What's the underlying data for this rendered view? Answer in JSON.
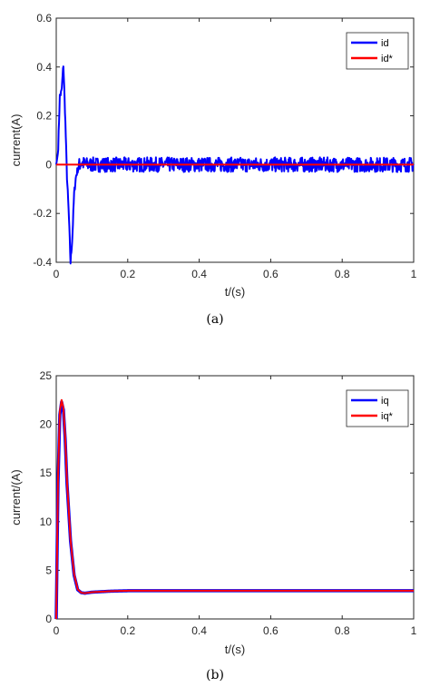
{
  "chart_data": [
    {
      "type": "line",
      "caption": "(a)",
      "xlabel": "t/(s)",
      "ylabel": "current(A)",
      "xlim": [
        0,
        1
      ],
      "ylim": [
        -0.4,
        0.6
      ],
      "xticks": [
        "0",
        "0.2",
        "0.4",
        "0.6",
        "0.8",
        "1"
      ],
      "yticks": [
        "-0.4",
        "-0.2",
        "0",
        "0.2",
        "0.4",
        "0.6"
      ],
      "grid": false,
      "legend_position": "top-right",
      "colors": {
        "id": "#0000ff",
        "id_ref": "#ff0000"
      },
      "series": [
        {
          "name": "id",
          "description": "noisy response around 0 after transient",
          "x": [
            0,
            0.005,
            0.01,
            0.015,
            0.02,
            0.025,
            0.03,
            0.035,
            0.04,
            0.045,
            0.05,
            0.055,
            0.06,
            0.065,
            0.07,
            0.08,
            0.1,
            0.2,
            0.4,
            0.6,
            0.8,
            1.0
          ],
          "y": [
            0,
            0.05,
            0.28,
            0.3,
            0.41,
            0.2,
            -0.05,
            -0.2,
            -0.4,
            -0.3,
            -0.12,
            -0.05,
            -0.02,
            0.0,
            0.01,
            0.0,
            0.0,
            0.0,
            0.0,
            0.0,
            0.0,
            0.0
          ],
          "noise_amplitude": 0.03
        },
        {
          "name": "id*",
          "x": [
            0,
            1
          ],
          "y": [
            0,
            0
          ]
        }
      ]
    },
    {
      "type": "line",
      "caption": "(b)",
      "xlabel": "t/(s)",
      "ylabel": "current/(A)",
      "xlim": [
        0,
        1
      ],
      "ylim": [
        0,
        25
      ],
      "xticks": [
        "0",
        "0.2",
        "0.4",
        "0.6",
        "0.8",
        "1"
      ],
      "yticks": [
        "0",
        "5",
        "10",
        "15",
        "20",
        "25"
      ],
      "grid": false,
      "legend_position": "top-right",
      "colors": {
        "iq": "#0000ff",
        "iq_ref": "#ff0000"
      },
      "series": [
        {
          "name": "iq",
          "x": [
            0,
            0.005,
            0.01,
            0.015,
            0.02,
            0.025,
            0.03,
            0.04,
            0.05,
            0.06,
            0.07,
            0.08,
            0.1,
            0.15,
            0.2,
            0.4,
            0.6,
            0.8,
            1.0
          ],
          "y": [
            0,
            14,
            21,
            22.3,
            21.5,
            18.5,
            14,
            8,
            4.5,
            3.0,
            2.7,
            2.65,
            2.75,
            2.85,
            2.9,
            2.9,
            2.9,
            2.9,
            2.9
          ]
        },
        {
          "name": "iq*",
          "x": [
            0,
            0.005,
            0.01,
            0.015,
            0.02,
            0.025,
            0.03,
            0.04,
            0.05,
            0.06,
            0.07,
            0.08,
            0.1,
            0.15,
            0.2,
            0.4,
            0.6,
            0.8,
            1.0
          ],
          "y": [
            0,
            14.5,
            21.3,
            22.5,
            21.7,
            18.7,
            14.2,
            8.1,
            4.6,
            3.05,
            2.7,
            2.65,
            2.75,
            2.85,
            2.9,
            2.9,
            2.9,
            2.9,
            2.9
          ]
        }
      ]
    }
  ]
}
